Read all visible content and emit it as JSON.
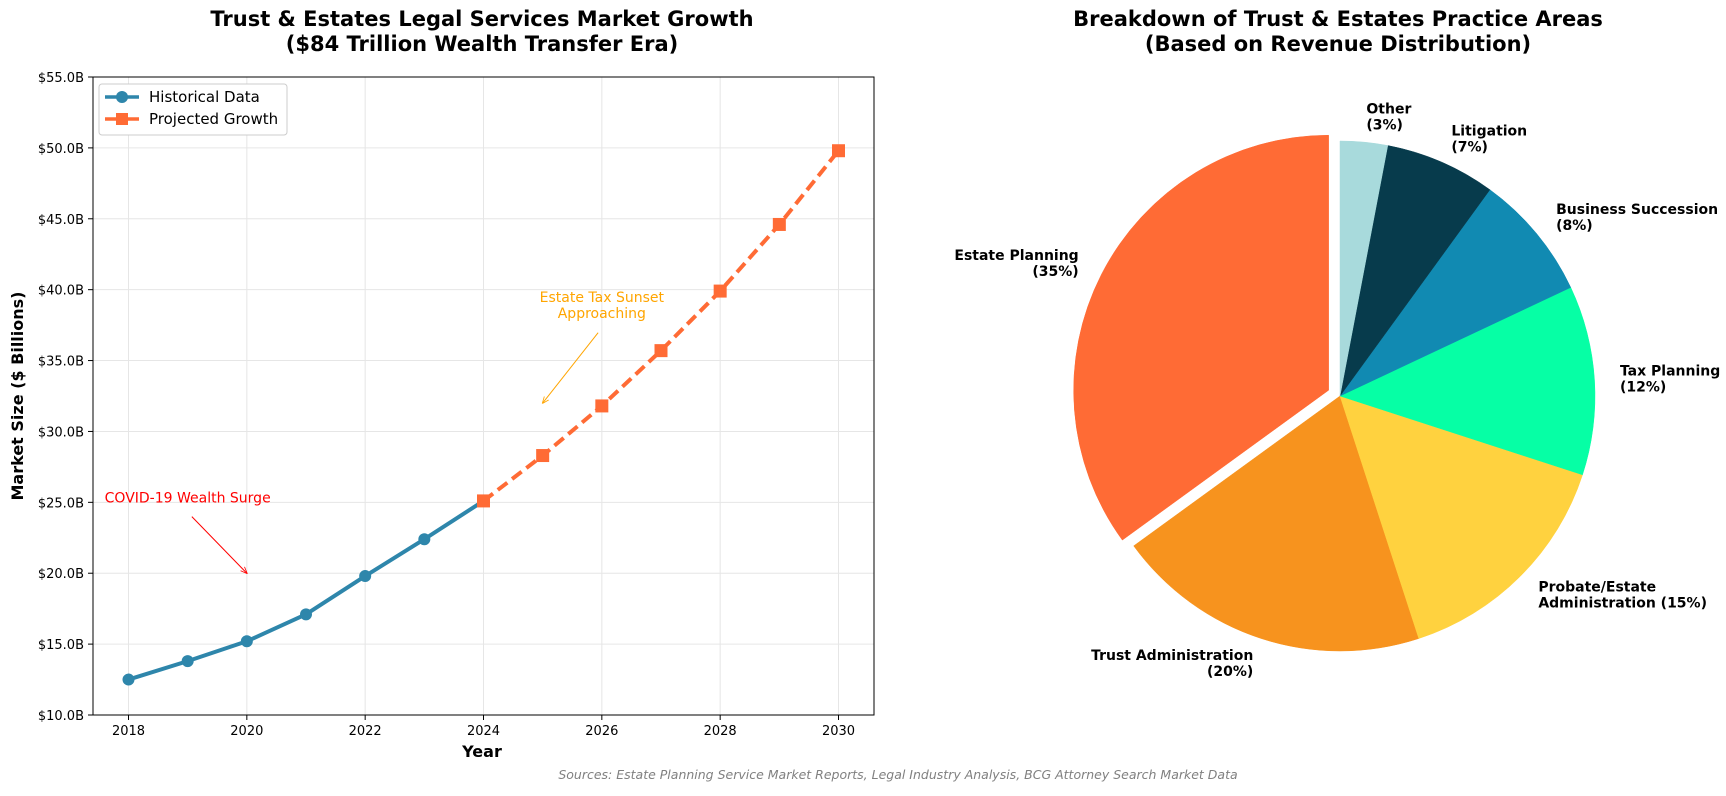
{
  "chart_data": [
    {
      "type": "line",
      "title": "Trust & Estates Legal Services Market Growth\n($84 Trillion Wealth Transfer Era)",
      "xlabel": "Year",
      "ylabel": "Market Size ($ Billions)",
      "xlim": [
        2017.4,
        2030.6
      ],
      "ylim": [
        10,
        55
      ],
      "x_ticks": [
        2018,
        2020,
        2022,
        2024,
        2026,
        2028,
        2030
      ],
      "y_ticks": [
        10,
        15,
        20,
        25,
        30,
        35,
        40,
        45,
        50,
        55
      ],
      "y_tick_labels": [
        "$10.0B",
        "$15.0B",
        "$20.0B",
        "$25.0B",
        "$30.0B",
        "$35.0B",
        "$40.0B",
        "$45.0B",
        "$50.0B",
        "$55.0B"
      ],
      "grid": true,
      "legend_position": "upper-left",
      "series": [
        {
          "name": "Historical Data",
          "color": "#2e86ab",
          "style": "solid",
          "marker": "circle",
          "x": [
            2018,
            2019,
            2020,
            2021,
            2022,
            2023,
            2024
          ],
          "y": [
            12.5,
            13.8,
            15.2,
            17.1,
            19.8,
            22.4,
            25.1
          ]
        },
        {
          "name": "Projected Growth",
          "color": "#ff6b35",
          "style": "dashed",
          "marker": "square",
          "x": [
            2024,
            2025,
            2026,
            2027,
            2028,
            2029,
            2030
          ],
          "y": [
            25.1,
            28.3,
            31.8,
            35.7,
            39.9,
            44.6,
            49.8
          ]
        }
      ],
      "annotations": [
        {
          "text": "COVID-19 Wealth Surge",
          "color": "#ff0000",
          "text_at": [
            2019,
            25
          ],
          "point_at": [
            2020,
            20
          ]
        },
        {
          "text": "Estate Tax Sunset\nApproaching",
          "color": "#ffa500",
          "text_at": [
            2026,
            38
          ],
          "point_at": [
            2025,
            32
          ]
        }
      ]
    },
    {
      "type": "pie",
      "title": "Breakdown of Trust & Estates Practice Areas\n(Based on Revenue Distribution)",
      "slices": [
        {
          "label": "Estate Planning\n(35%)",
          "value": 35,
          "color": "#ff6b35",
          "exploded": true
        },
        {
          "label": "Trust Administration\n(20%)",
          "value": 20,
          "color": "#f7931e",
          "exploded": false
        },
        {
          "label": "Probate/Estate\nAdministration (15%)",
          "value": 15,
          "color": "#ffd23f",
          "exploded": false
        },
        {
          "label": "Tax Planning\n(12%)",
          "value": 12,
          "color": "#06ffa5",
          "exploded": false
        },
        {
          "label": "Business Succession\n(8%)",
          "value": 8,
          "color": "#118ab2",
          "exploded": false
        },
        {
          "label": "Litigation\n(7%)",
          "value": 7,
          "color": "#073b4c",
          "exploded": false
        },
        {
          "label": "Other\n(3%)",
          "value": 3,
          "color": "#a8dadc",
          "exploded": false
        }
      ]
    }
  ],
  "source": "Sources: Estate Planning Service Market Reports, Legal Industry Analysis, BCG Attorney Search Market Data"
}
